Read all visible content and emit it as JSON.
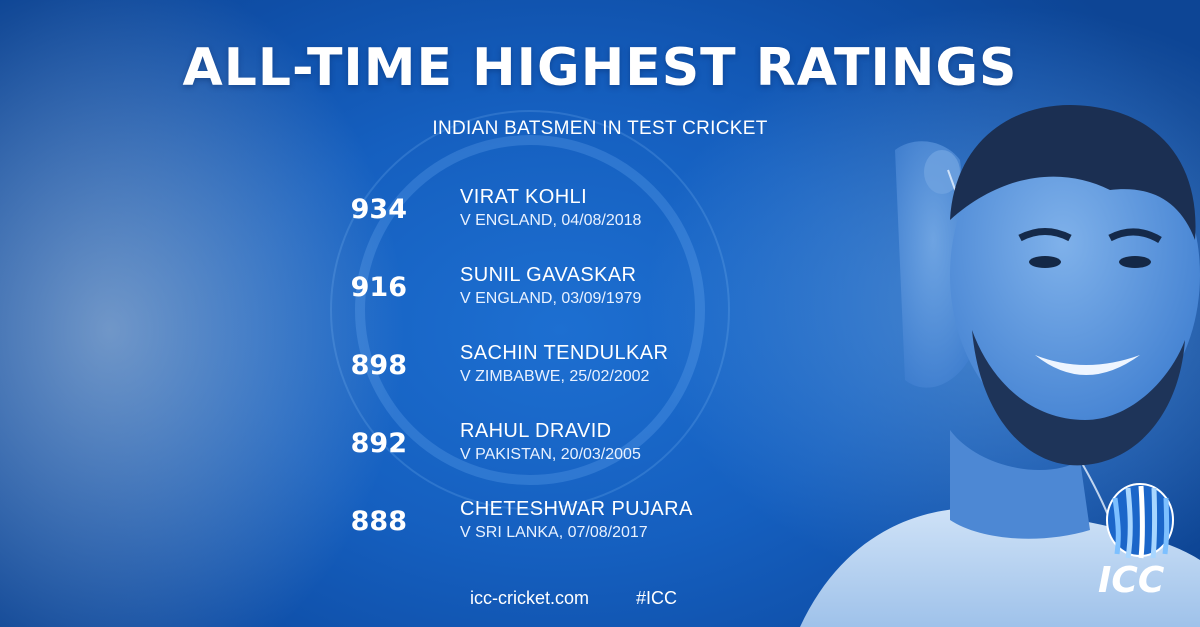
{
  "header": {
    "title": "ALL-TIME HIGHEST RATINGS",
    "subtitle": "INDIAN BATSMEN IN TEST CRICKET"
  },
  "ratings": [
    {
      "rating": "934",
      "name": "VIRAT KOHLI",
      "match": "V ENGLAND, 04/08/2018"
    },
    {
      "rating": "916",
      "name": "SUNIL GAVASKAR",
      "match": "V ENGLAND, 03/09/1979"
    },
    {
      "rating": "898",
      "name": "SACHIN TENDULKAR",
      "match": "V ZIMBABWE, 25/02/2002"
    },
    {
      "rating": "892",
      "name": "RAHUL DRAVID",
      "match": "V PAKISTAN, 20/03/2005"
    },
    {
      "rating": "888",
      "name": "CHETESHWAR PUJARA",
      "match": "V SRI LANKA, 07/08/2017"
    }
  ],
  "footer": {
    "website": "icc-cricket.com",
    "hashtag": "#ICC"
  },
  "logo": {
    "text": "ICC"
  },
  "colors": {
    "background": "#155fbf",
    "text": "#ffffff"
  }
}
